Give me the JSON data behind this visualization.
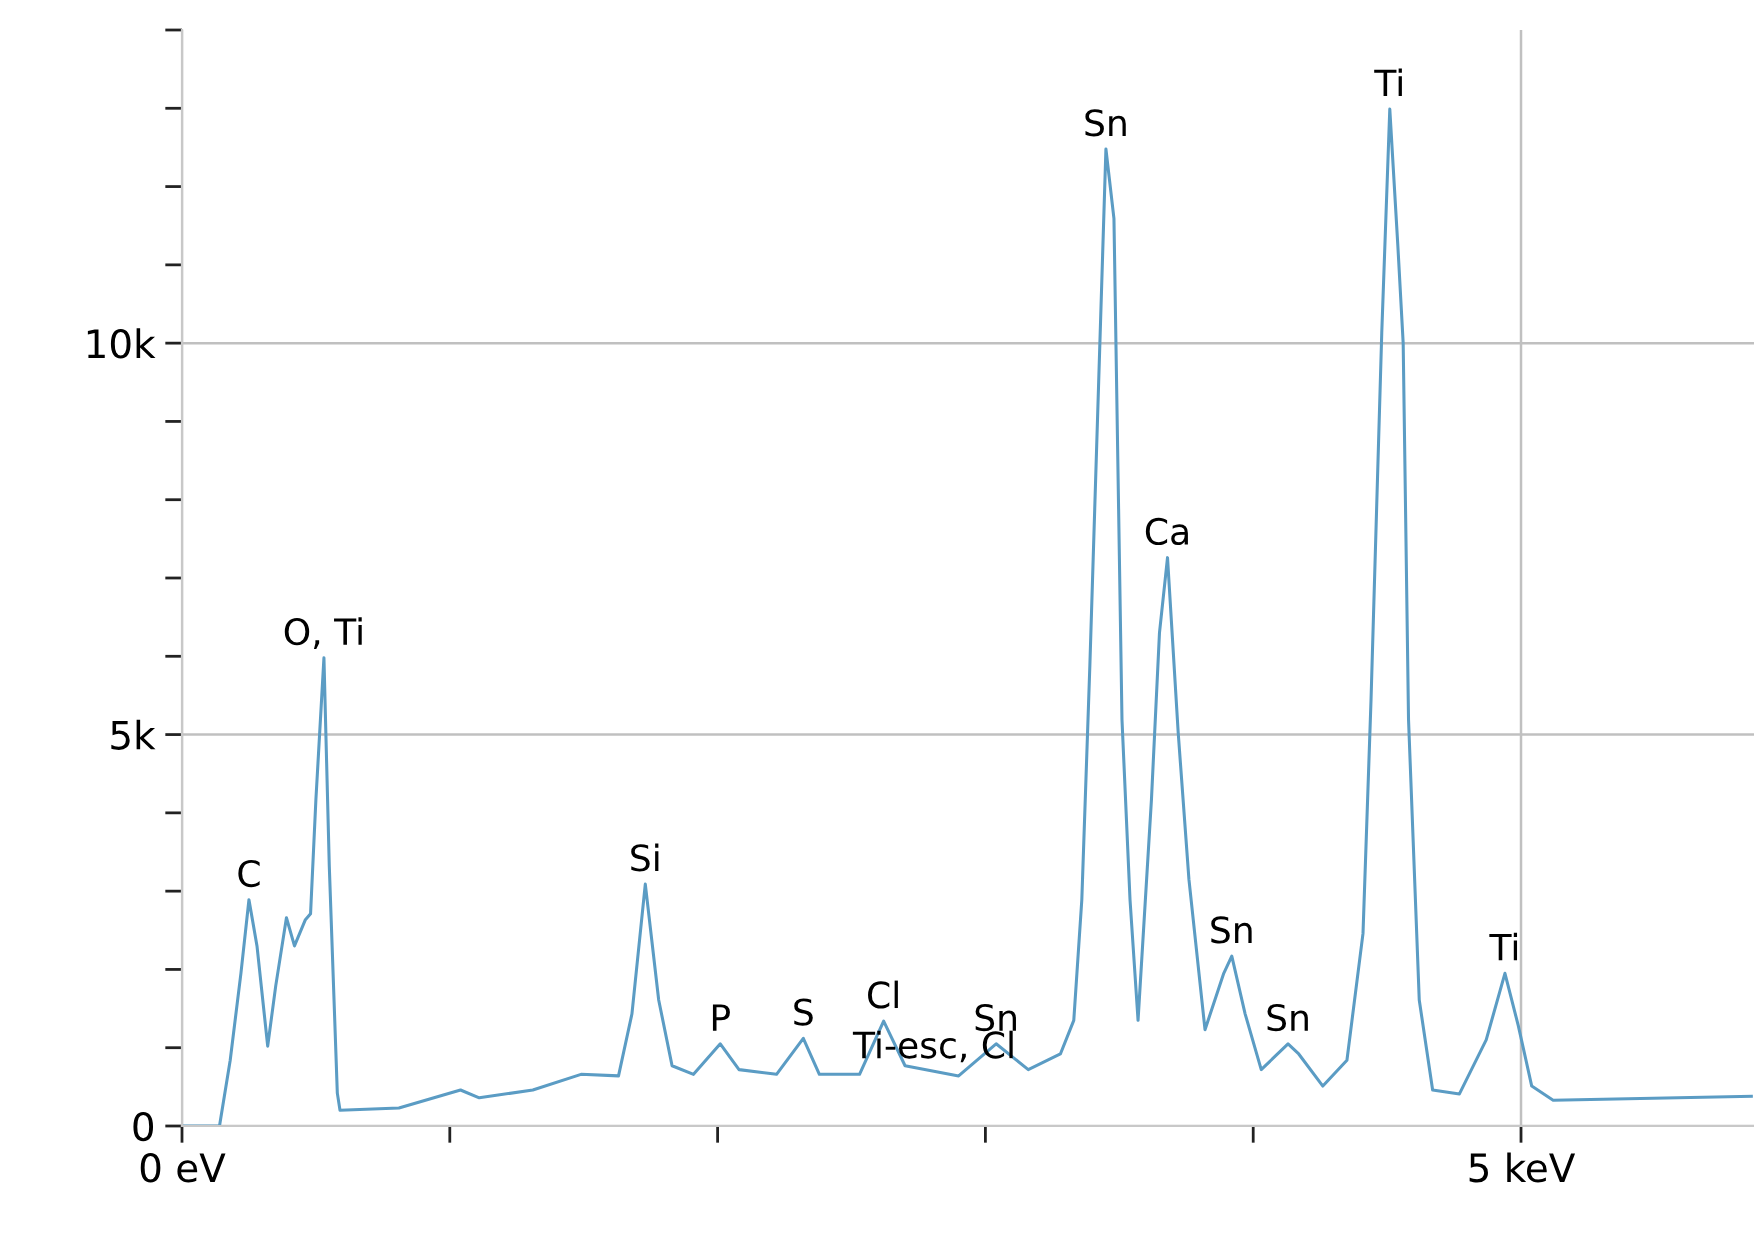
{
  "chart_data": {
    "type": "line",
    "x": [
      0,
      0.14,
      0.18,
      0.22,
      0.25,
      0.28,
      0.32,
      0.35,
      0.39,
      0.42,
      0.46,
      0.48,
      0.5,
      0.53,
      0.55,
      0.58,
      0.59,
      0.81,
      1.04,
      1.11,
      1.31,
      1.49,
      1.63,
      1.68,
      1.73,
      1.78,
      1.83,
      1.91,
      2.01,
      2.08,
      2.22,
      2.32,
      2.38,
      2.53,
      2.62,
      2.7,
      2.9,
      3.04,
      3.16,
      3.28,
      3.33,
      3.36,
      3.39,
      3.45,
      3.48,
      3.51,
      3.54,
      3.57,
      3.62,
      3.65,
      3.68,
      3.72,
      3.76,
      3.82,
      3.89,
      3.92,
      3.97,
      4.03,
      4.13,
      4.17,
      4.26,
      4.35,
      4.41,
      4.44,
      4.48,
      4.51,
      4.54,
      4.56,
      4.58,
      4.62,
      4.67,
      4.77,
      4.87,
      4.94,
      4.99,
      5.04,
      5.12,
      5.86
    ],
    "series": [
      {
        "color": "#5b9cc4",
        "values": [
          0,
          0,
          840,
          1950,
          2890,
          2300,
          1020,
          1790,
          2660,
          2300,
          2630,
          2710,
          4170,
          5980,
          3320,
          420,
          200,
          230,
          460,
          360,
          460,
          660,
          640,
          1430,
          3090,
          1610,
          770,
          660,
          1050,
          720,
          660,
          1120,
          660,
          660,
          1340,
          770,
          640,
          1050,
          720,
          920,
          1350,
          2890,
          5880,
          12480,
          11590,
          5190,
          2890,
          1350,
          4170,
          6300,
          7260,
          5020,
          3150,
          1230,
          1950,
          2170,
          1430,
          720,
          1050,
          920,
          510,
          840,
          2460,
          5450,
          10130,
          12990,
          11250,
          10000,
          5190,
          1610,
          460,
          410,
          1100,
          1950,
          1280,
          510,
          330,
          380
        ]
      }
    ],
    "xlim": [
      0,
      5.87
    ],
    "ylim": [
      0,
      14000
    ],
    "xticks": [
      {
        "value": 0,
        "label": "0 eV"
      },
      {
        "value": 1,
        "label": null
      },
      {
        "value": 2,
        "label": null
      },
      {
        "value": 3,
        "label": null
      },
      {
        "value": 4,
        "label": null
      },
      {
        "value": 5,
        "label": "5 keV"
      }
    ],
    "yticks": [
      0,
      {
        "value": 1000,
        "label": null
      },
      {
        "value": 2000,
        "label": null
      },
      {
        "value": 3000,
        "label": null
      },
      {
        "value": 4000,
        "label": null
      },
      {
        "value": 5000,
        "label": "5k"
      },
      {
        "value": 6000,
        "label": null
      },
      {
        "value": 7000,
        "label": null
      },
      {
        "value": 8000,
        "label": null
      },
      {
        "value": 9000,
        "label": null
      },
      {
        "value": 10000,
        "label": "10k"
      },
      {
        "value": 11000,
        "label": null
      },
      {
        "value": 12000,
        "label": null
      },
      {
        "value": 13000,
        "label": null
      },
      {
        "value": 14000,
        "label": null
      }
    ],
    "grid": true,
    "legend": false,
    "marker": "none",
    "line_style": "solid",
    "annotations": [
      {
        "text": "C",
        "x": 0.25,
        "y": 2890
      },
      {
        "text": "O, Ti",
        "x": 0.53,
        "y": 5980
      },
      {
        "text": "Si",
        "x": 1.73,
        "y": 3090
      },
      {
        "text": "P",
        "x": 2.01,
        "y": 1050
      },
      {
        "text": "S",
        "x": 2.32,
        "y": 1120
      },
      {
        "text": "Cl",
        "x": 2.62,
        "y": 1340
      },
      {
        "text": "Ti-esc, Cl",
        "x": 2.81,
        "y": 700
      },
      {
        "text": "Sn",
        "x": 3.04,
        "y": 1050
      },
      {
        "text": "Sn",
        "x": 3.45,
        "y": 12480
      },
      {
        "text": "Ca",
        "x": 3.68,
        "y": 7260
      },
      {
        "text": "Sn",
        "x": 3.92,
        "y": 2170
      },
      {
        "text": "Sn",
        "x": 4.13,
        "y": 1050
      },
      {
        "text": "Ti",
        "x": 4.51,
        "y": 12990
      },
      {
        "text": "Ti",
        "x": 4.94,
        "y": 1950
      }
    ]
  }
}
